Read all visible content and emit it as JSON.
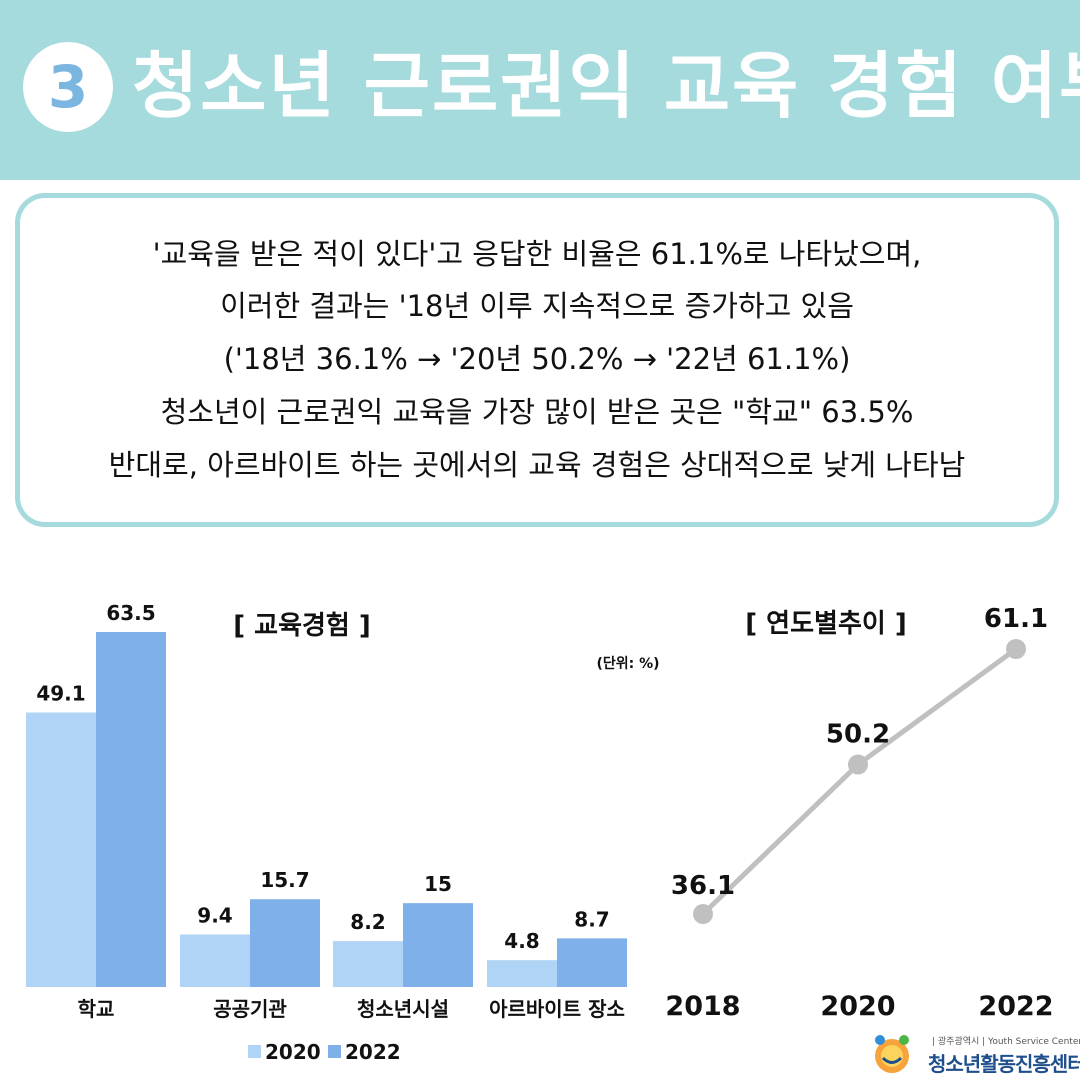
{
  "header": {
    "number": "3",
    "title": "청소년 근로권익 교육 경험 여부",
    "colors": {
      "band": "#a5dbdd",
      "badge_text": "#7ab6df"
    }
  },
  "summary": {
    "lines": [
      "'교육을 받은 적이 있다'고 응답한 비율은 61.1%로 나타났으며,",
      "이러한 결과는 '18년 이루 지속적으로 증가하고 있음",
      "('18년 36.1% → '20년 50.2% → '22년 61.1%)",
      "청소년이 근로권익 교육을 가장 많이 받은 곳은 \"학교\" 63.5%",
      "반대로, 아르바이트 하는 곳에서의 교육 경험은 상대적으로 낮게 나타남"
    ]
  },
  "chart_data": [
    {
      "type": "bar",
      "title": "[ 교육경험 ]",
      "unit": "(단위: %)",
      "categories": [
        "학교",
        "공공기관",
        "청소년시설",
        "아르바이트 장소"
      ],
      "series": [
        {
          "name": "2020",
          "values": [
            49.1,
            9.4,
            8.2,
            4.8
          ],
          "color": "#b0d4f5"
        },
        {
          "name": "2022",
          "values": [
            63.5,
            15.7,
            15,
            8.7
          ],
          "color": "#7fb0ea"
        }
      ],
      "ylim": [
        0,
        63.5
      ],
      "legend": "bottom",
      "grid": false
    },
    {
      "type": "line",
      "title": "[ 연도별추이 ]",
      "x": [
        "2018",
        "2020",
        "2022"
      ],
      "series": [
        {
          "values": [
            36.1,
            50.2,
            61.1
          ],
          "color": "#c0c0c0"
        }
      ],
      "grid": false
    }
  ],
  "logo": {
    "small_text": "| 광주광역시 | Youth Service Center",
    "name": "청소년활동진흥센터"
  }
}
